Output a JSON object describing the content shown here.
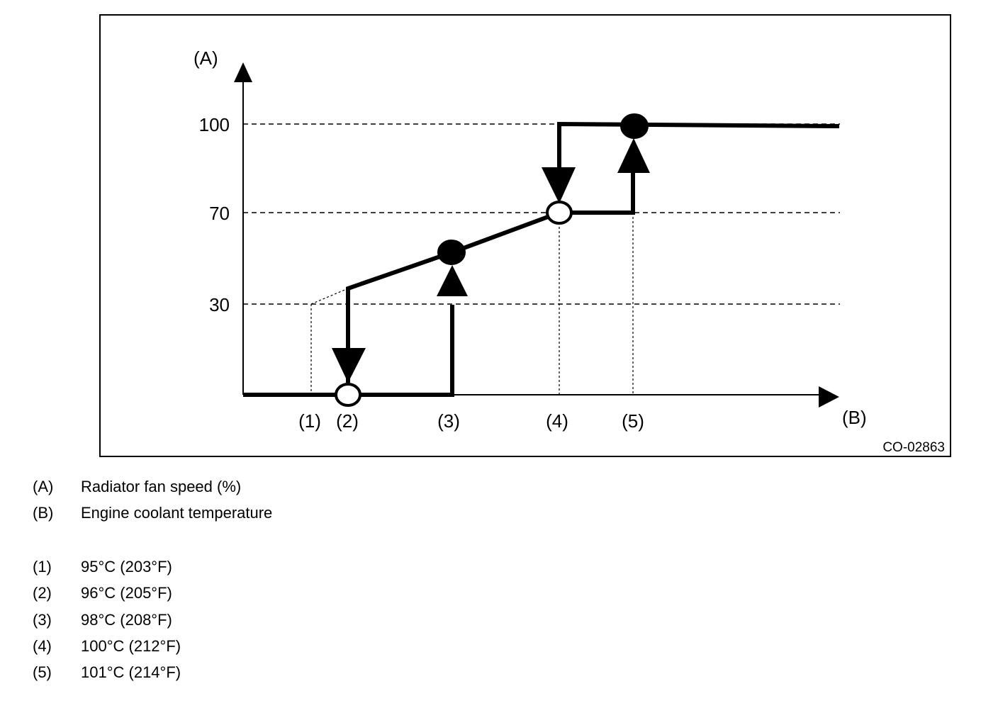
{
  "figure_id": "CO-02863",
  "axes": {
    "y_label": "(A)",
    "x_label": "(B)",
    "y_ticks": [
      "100",
      "70",
      "30"
    ],
    "x_markers": [
      "(1)",
      "(2)",
      "(3)",
      "(4)",
      "(5)"
    ]
  },
  "legend": {
    "axes": [
      {
        "key": "(A)",
        "text": "Radiator fan speed (%)"
      },
      {
        "key": "(B)",
        "text": "Engine coolant temperature"
      }
    ],
    "points": [
      {
        "key": "(1)",
        "text": "95°C (203°F)"
      },
      {
        "key": "(2)",
        "text": "96°C (205°F)"
      },
      {
        "key": "(3)",
        "text": "98°C (208°F)"
      },
      {
        "key": "(4)",
        "text": "100°C (212°F)"
      },
      {
        "key": "(5)",
        "text": "101°C (214°F)"
      }
    ]
  },
  "colors": {
    "line": "#000000",
    "background": "#ffffff"
  }
}
